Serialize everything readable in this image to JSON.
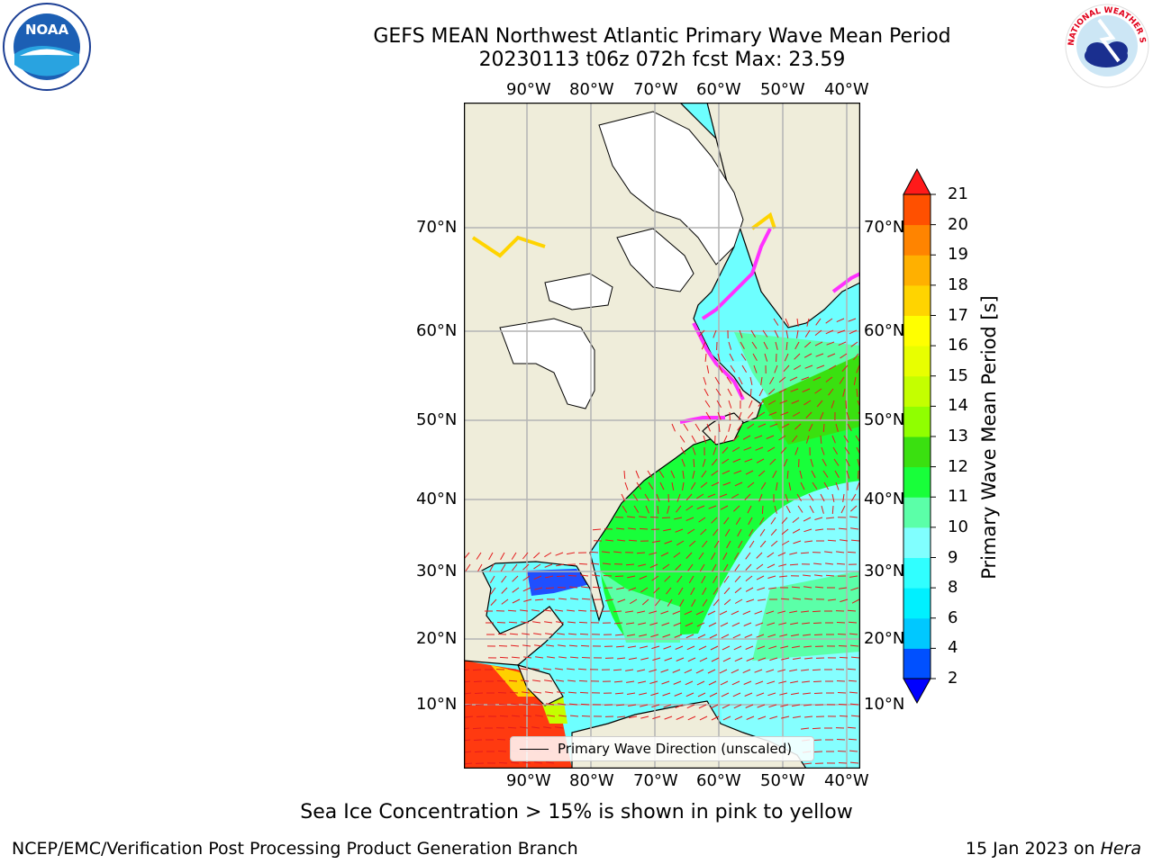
{
  "header": {
    "title_line1": "GEFS MEAN Northwest Atlantic Primary Wave Mean Period",
    "title_line2": "20230113 t06z 072h fcst   Max: 23.59"
  },
  "logos": {
    "noaa_text": "NOAA",
    "nws_text": "NATIONAL WEATHER SERVICE"
  },
  "map": {
    "lon_labels": [
      "90°W",
      "80°W",
      "70°W",
      "60°W",
      "50°W",
      "40°W"
    ],
    "lat_labels": [
      "70°N",
      "60°N",
      "50°N",
      "40°N",
      "30°N",
      "20°N",
      "10°N"
    ],
    "legend_label": "Primary Wave Direction (unscaled)",
    "land_color": "#efedda",
    "ice_free_land_color": "#ffffff",
    "arrow_color": "#e31a1c"
  },
  "colorbar": {
    "title": "Primary Wave Mean Period [s]",
    "tick_labels": [
      "2",
      "4",
      "6",
      "8",
      "9",
      "10",
      "11",
      "12",
      "13",
      "14",
      "15",
      "16",
      "17",
      "18",
      "19",
      "20",
      "21"
    ],
    "colors": [
      "#0050ff",
      "#00c8ff",
      "#00f0ff",
      "#30ffff",
      "#80ffff",
      "#5bffa8",
      "#18ff3a",
      "#3ae010",
      "#90ff00",
      "#c4ff00",
      "#e8ff00",
      "#ffff00",
      "#ffd400",
      "#ffb000",
      "#ff8400",
      "#ff5000",
      "#ff2800"
    ],
    "under_color": "#0000ff",
    "over_color": "#ff1a1a"
  },
  "footer": {
    "note": "Sea Ice Concentration > 15% is shown in pink to yellow",
    "left": "NCEP/EMC/Verification Post Processing Product Generation Branch",
    "right_date": "15 Jan 2023 on ",
    "right_machine": "Hera"
  }
}
